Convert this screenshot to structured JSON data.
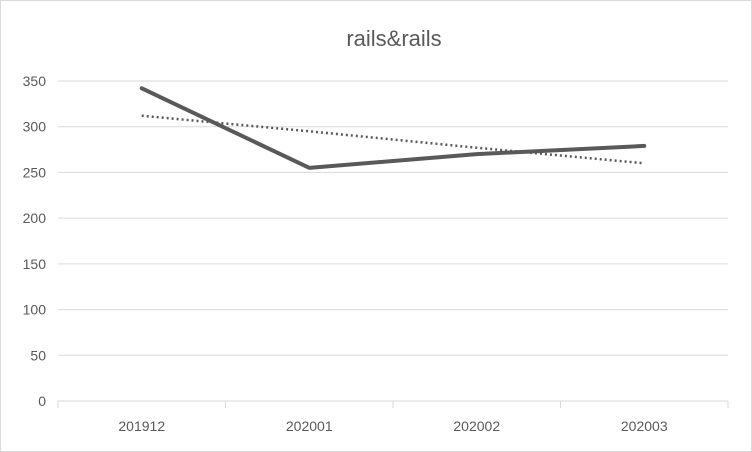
{
  "chart_data": {
    "type": "line",
    "title": "rails&rails",
    "categories": [
      "201912",
      "202001",
      "202002",
      "202003"
    ],
    "series": [
      {
        "values": [
          342,
          255,
          270,
          279
        ],
        "color": "#595959",
        "style": "solid"
      },
      {
        "values": [
          312,
          295,
          277,
          260
        ],
        "color": "#595959",
        "style": "dotted"
      }
    ],
    "ylim": [
      0,
      350
    ],
    "yticks": [
      0,
      50,
      100,
      150,
      200,
      250,
      300,
      350
    ],
    "grid": true,
    "legend": "none"
  }
}
